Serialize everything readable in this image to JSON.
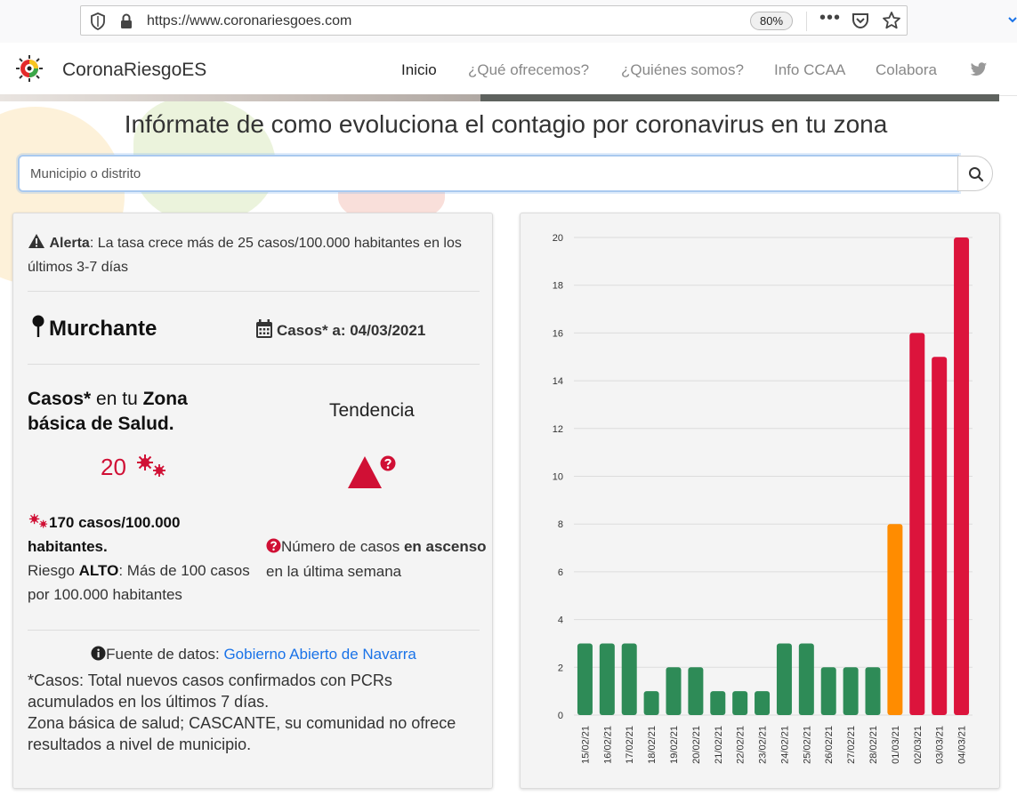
{
  "browser": {
    "url": "https://www.coronariesgoes.com",
    "zoom": "80%",
    "more_label": "•••"
  },
  "navbar": {
    "brand": "CoronaRiesgoES",
    "links": [
      {
        "label": "Inicio",
        "active": true
      },
      {
        "label": "¿Qué ofrecemos?",
        "active": false
      },
      {
        "label": "¿Quiénes somos?",
        "active": false
      },
      {
        "label": "Info CCAA",
        "active": false
      },
      {
        "label": "Colabora",
        "active": false
      }
    ]
  },
  "headline": "Infórmate de como evoluciona el contagio por coronavirus en tu zona",
  "search": {
    "placeholder": "Municipio o distrito"
  },
  "alert": {
    "label": "Alerta",
    "text": ": La tasa crece más de 25 casos/100.000 habitantes en los últimos 3-7 días"
  },
  "location": {
    "name": "Murchante",
    "date_prefix": "Casos* a: ",
    "date": "04/03/2021"
  },
  "cases": {
    "title_part1": "Casos*",
    "title_part2": " en tu ",
    "title_part3": "Zona básica de Salud.",
    "value": "20"
  },
  "trend": {
    "title": "Tendencia",
    "desc_part1": "Número de casos ",
    "desc_part2": "en ascenso",
    "desc_part3": " en la última semana"
  },
  "rate": {
    "value_text": "170 casos/100.000 habitantes.",
    "risk_prefix": "Riesgo ",
    "risk_level": "ALTO",
    "risk_suffix": ": Más de 100 casos por 100.000 habitantes"
  },
  "source": {
    "prefix": "Fuente de datos: ",
    "link": "Gobierno Abierto de Navarra"
  },
  "notes": {
    "line1": "*Casos: Total nuevos casos confirmados con PCRs acumulados en los últimos 7 días.",
    "line2": "Zona básica de salud; CASCANTE, su comunidad no ofrece resultados a nivel de municipio."
  },
  "colors": {
    "green": "#2e8b57",
    "orange": "#ff8c00",
    "red": "#dc143c",
    "accent_red": "#d01035",
    "link": "#1a73e8"
  },
  "chart_data": {
    "type": "bar",
    "categories": [
      "15/02/21",
      "16/02/21",
      "17/02/21",
      "18/02/21",
      "19/02/21",
      "20/02/21",
      "21/02/21",
      "22/02/21",
      "23/02/21",
      "24/02/21",
      "25/02/21",
      "26/02/21",
      "27/02/21",
      "28/02/21",
      "01/03/21",
      "02/03/21",
      "03/03/21",
      "04/03/21"
    ],
    "values": [
      3,
      3,
      3,
      1,
      2,
      2,
      1,
      1,
      1,
      3,
      3,
      2,
      2,
      2,
      8,
      16,
      15,
      20
    ],
    "bar_colors": [
      "#2e8b57",
      "#2e8b57",
      "#2e8b57",
      "#2e8b57",
      "#2e8b57",
      "#2e8b57",
      "#2e8b57",
      "#2e8b57",
      "#2e8b57",
      "#2e8b57",
      "#2e8b57",
      "#2e8b57",
      "#2e8b57",
      "#2e8b57",
      "#ff8c00",
      "#dc143c",
      "#dc143c",
      "#dc143c"
    ],
    "ylim": [
      0,
      20
    ],
    "yticks": [
      0,
      2,
      4,
      6,
      8,
      10,
      12,
      14,
      16,
      18,
      20
    ],
    "grid": true,
    "legend": "none"
  }
}
